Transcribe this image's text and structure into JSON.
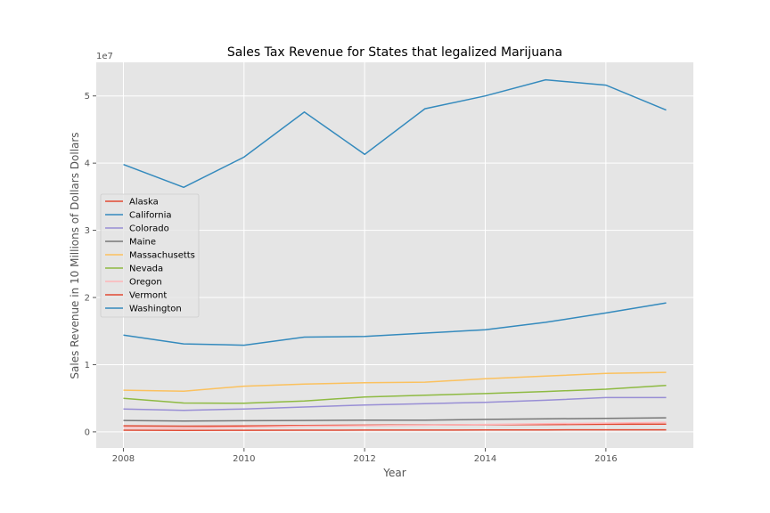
{
  "chart_data": {
    "type": "line",
    "title": "Sales Tax Revenue for States that legalized Marijuana",
    "xlabel": "Year",
    "ylabel": "Sales Revenue in 10 Millions of Dollars Dollars",
    "y_offset_text": "1e7",
    "x": [
      2008,
      2009,
      2010,
      2011,
      2012,
      2013,
      2014,
      2015,
      2016,
      2017
    ],
    "xlim": [
      2007.55,
      2017.45
    ],
    "ylim": [
      -2400000,
      55000000
    ],
    "x_ticks": [
      2008,
      2010,
      2012,
      2014,
      2016
    ],
    "x_tick_labels": [
      "2008",
      "2010",
      "2012",
      "2014",
      "2016"
    ],
    "y_ticks": [
      0,
      10000000,
      20000000,
      30000000,
      40000000,
      50000000
    ],
    "y_tick_labels": [
      "0",
      "1",
      "2",
      "3",
      "4",
      "5"
    ],
    "grid": true,
    "legend_position": "center-left",
    "series": [
      {
        "name": "Alaska",
        "color": "#E24A33",
        "values": [
          900000,
          850000,
          880000,
          950000,
          1000000,
          1030000,
          1060000,
          1090000,
          1120000,
          1150000
        ]
      },
      {
        "name": "California",
        "color": "#348ABD",
        "values": [
          39800000,
          36400000,
          40900000,
          47600000,
          41300000,
          48100000,
          50000000,
          52400000,
          51600000,
          47900000
        ]
      },
      {
        "name": "Colorado",
        "color": "#988ED5",
        "values": [
          3400000,
          3200000,
          3400000,
          3700000,
          4000000,
          4200000,
          4400000,
          4700000,
          5100000,
          5100000
        ]
      },
      {
        "name": "Maine",
        "color": "#777777",
        "values": [
          1700000,
          1600000,
          1650000,
          1700000,
          1750000,
          1750000,
          1850000,
          1950000,
          2000000,
          2100000
        ]
      },
      {
        "name": "Massachusetts",
        "color": "#FBC15E",
        "values": [
          6200000,
          6050000,
          6800000,
          7100000,
          7300000,
          7400000,
          7900000,
          8300000,
          8700000,
          8850000
        ]
      },
      {
        "name": "Nevada",
        "color": "#8EBA42",
        "values": [
          5000000,
          4300000,
          4250000,
          4600000,
          5200000,
          5450000,
          5700000,
          6000000,
          6350000,
          6900000
        ]
      },
      {
        "name": "Oregon",
        "color": "#FFB5B8",
        "values": [
          600000,
          560000,
          700000,
          850000,
          920000,
          1000000,
          1100000,
          1200000,
          1300000,
          1400000
        ]
      },
      {
        "name": "Vermont",
        "color": "#E24A33",
        "values": [
          250000,
          230000,
          240000,
          250000,
          260000,
          270000,
          280000,
          290000,
          300000,
          310000
        ]
      },
      {
        "name": "Washington",
        "color": "#348ABD",
        "values": [
          14400000,
          13100000,
          12900000,
          14100000,
          14200000,
          14700000,
          15200000,
          16300000,
          17700000,
          19200000
        ]
      }
    ]
  }
}
